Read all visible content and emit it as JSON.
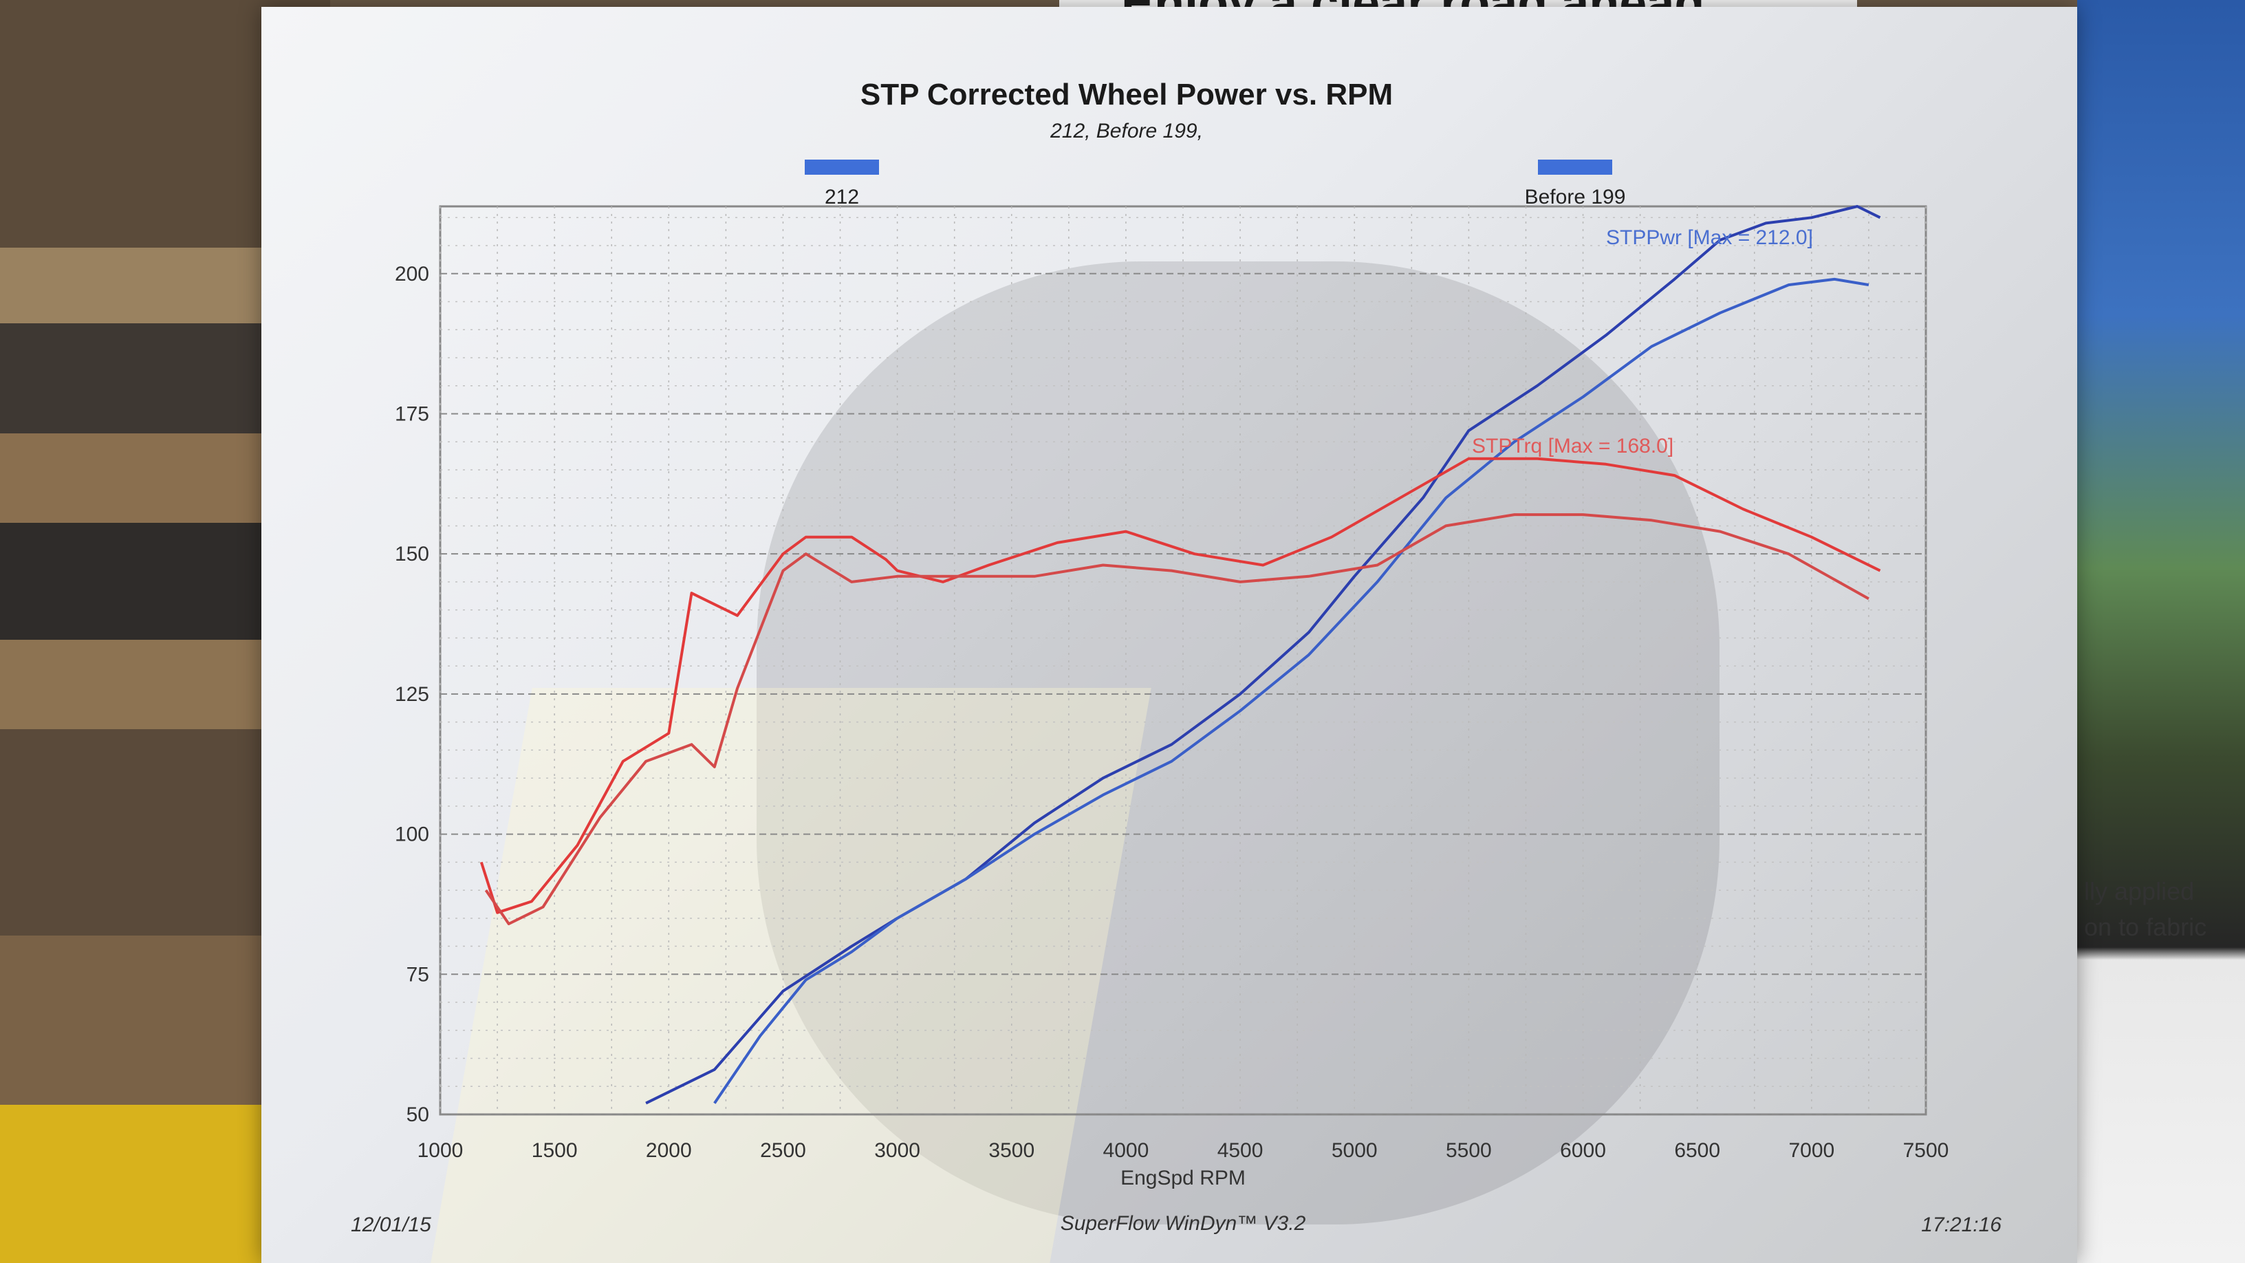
{
  "chart_data": {
    "type": "line",
    "title": "STP Corrected Wheel Power vs. RPM",
    "subtitle": "212, Before 199,",
    "legend": [
      {
        "name": "212",
        "color": "#3f6fd8"
      },
      {
        "name": "Before 199",
        "color": "#3f6fd8"
      }
    ],
    "xlabel": "EngSpd RPM",
    "xlim": [
      1000,
      7500
    ],
    "ylim": [
      50,
      212
    ],
    "x_ticks": [
      "1000",
      "1500",
      "2000",
      "2500",
      "3000",
      "3500",
      "4000",
      "4500",
      "5000",
      "5500",
      "6000",
      "6500",
      "7000",
      "7500"
    ],
    "y_ticks": [
      "200",
      "175",
      "150",
      "125",
      "100",
      "75",
      "50"
    ],
    "annotations": {
      "power_max": "STPPwr [Max = 212.0]",
      "torque_max": "STPTrq [Max = 168.0]"
    },
    "series": [
      {
        "name": "STPPwr 212",
        "color": "#2c3fae",
        "x": [
          1900,
          2200,
          2500,
          2800,
          3000,
          3300,
          3600,
          3900,
          4200,
          4500,
          4800,
          5000,
          5300,
          5500,
          5800,
          6100,
          6400,
          6600,
          6800,
          7000,
          7200,
          7300
        ],
        "y": [
          52,
          58,
          72,
          80,
          85,
          92,
          102,
          110,
          116,
          125,
          136,
          146,
          160,
          172,
          180,
          189,
          199,
          206,
          209,
          210,
          212,
          210
        ]
      },
      {
        "name": "STPPwr Before 199",
        "color": "#3a5fc8",
        "x": [
          2200,
          2400,
          2600,
          2800,
          3000,
          3300,
          3600,
          3900,
          4200,
          4500,
          4800,
          5100,
          5400,
          5700,
          6000,
          6300,
          6600,
          6900,
          7100,
          7250
        ],
        "y": [
          52,
          64,
          74,
          79,
          85,
          92,
          100,
          107,
          113,
          122,
          132,
          145,
          160,
          170,
          178,
          187,
          193,
          198,
          199,
          198
        ]
      },
      {
        "name": "STPTrq 212",
        "color": "#e23a3a",
        "x": [
          1180,
          1250,
          1400,
          1600,
          1800,
          2000,
          2100,
          2300,
          2500,
          2600,
          2800,
          2950,
          3000,
          3200,
          3400,
          3700,
          4000,
          4300,
          4600,
          4900,
          5200,
          5500,
          5800,
          6100,
          6400,
          6700,
          7000,
          7300
        ],
        "y": [
          95,
          86,
          88,
          98,
          113,
          118,
          143,
          139,
          150,
          153,
          153,
          149,
          147,
          145,
          148,
          152,
          154,
          150,
          148,
          153,
          160,
          167,
          167,
          166,
          164,
          158,
          153,
          147
        ]
      },
      {
        "name": "STPTrq Before 199",
        "color": "#d44a4a",
        "x": [
          1200,
          1300,
          1450,
          1700,
          1900,
          2100,
          2200,
          2300,
          2500,
          2600,
          2800,
          3000,
          3300,
          3600,
          3900,
          4200,
          4500,
          4800,
          5100,
          5400,
          5700,
          6000,
          6300,
          6600,
          6900,
          7250
        ],
        "y": [
          90,
          84,
          87,
          103,
          113,
          116,
          112,
          126,
          147,
          150,
          145,
          146,
          146,
          146,
          148,
          147,
          145,
          146,
          148,
          155,
          157,
          157,
          156,
          154,
          150,
          142
        ]
      }
    ]
  },
  "footer": {
    "date": "12/01/15",
    "software": "SuperFlow WinDyn™ V3.2",
    "time": "17:21:16"
  },
  "background": {
    "banner": "Enjoy a clear road ahead",
    "side_text_1": "lly applied",
    "side_text_2": "on to fabric"
  }
}
